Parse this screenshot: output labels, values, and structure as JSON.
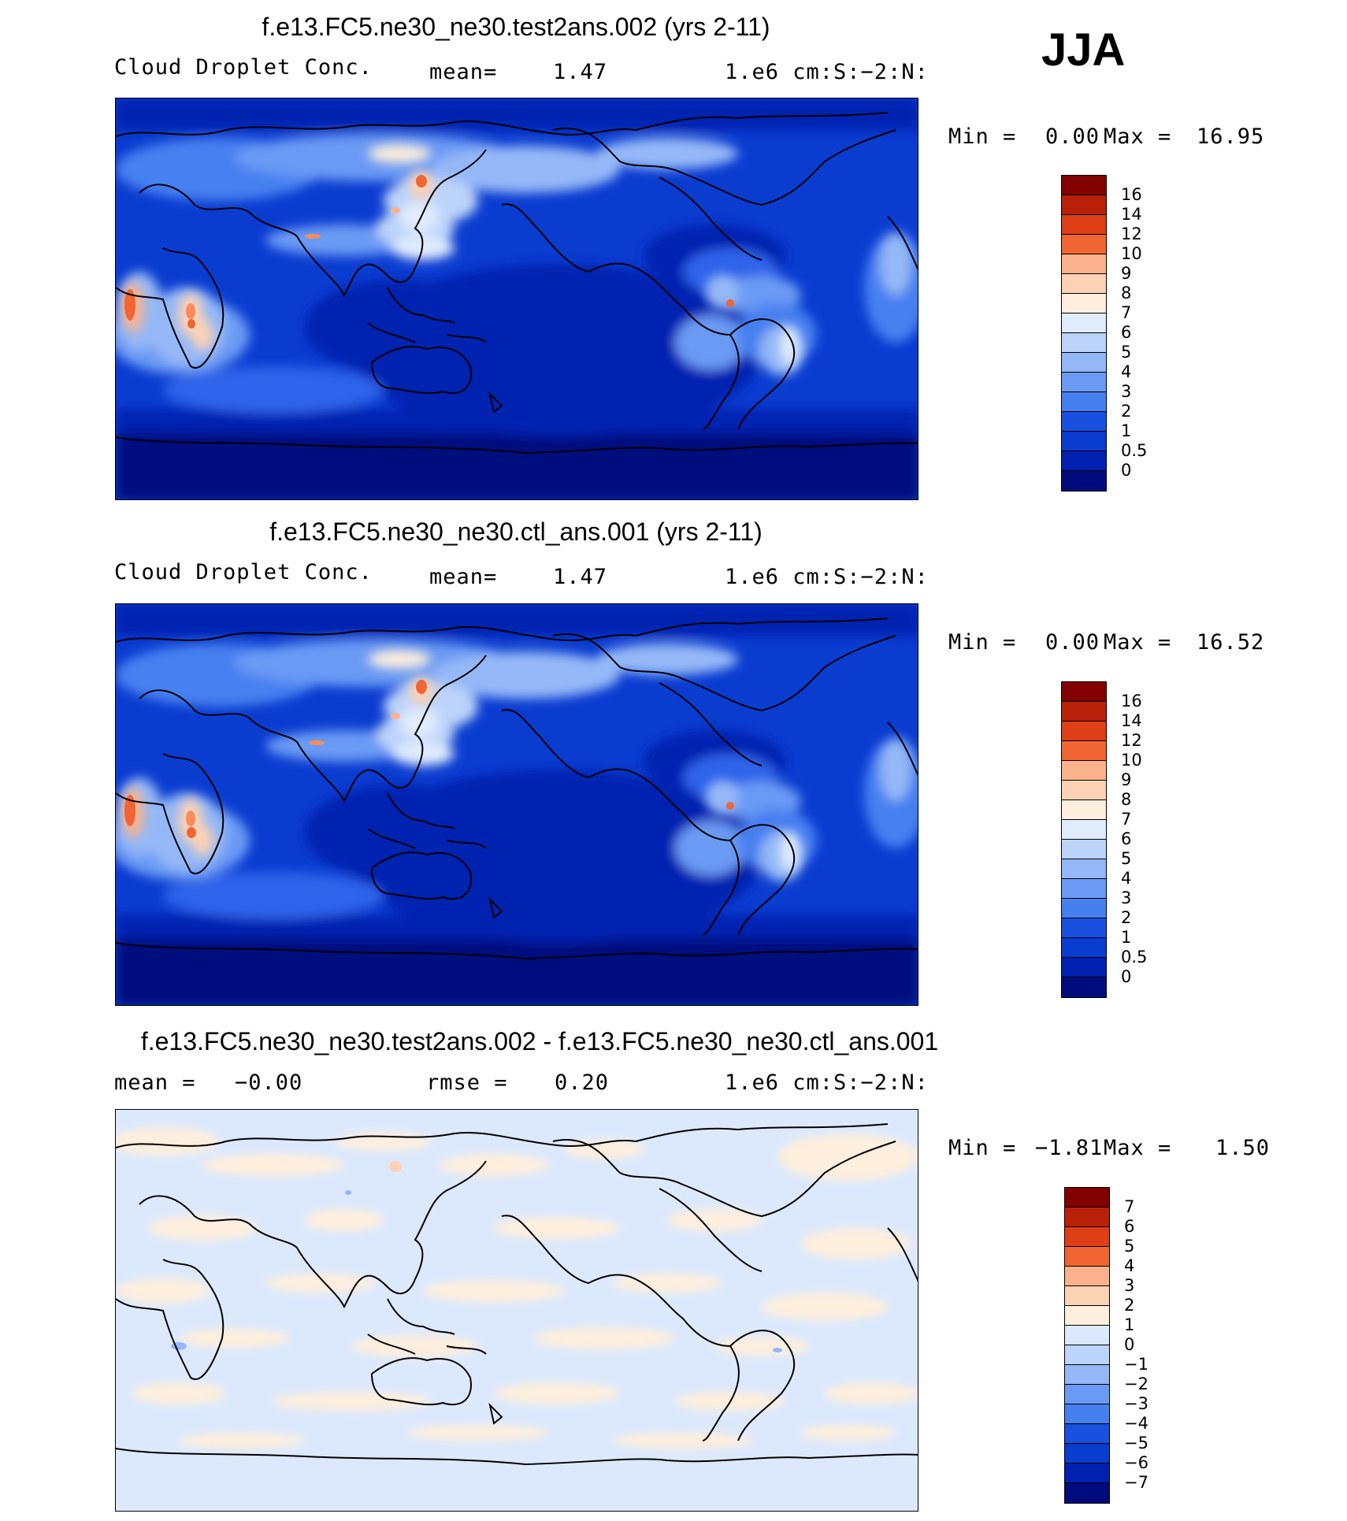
{
  "season": "JJA",
  "colors": {
    "abs": [
      "#000c7d",
      "#0020b0",
      "#0a3cd0",
      "#1a50e0",
      "#2d63ea",
      "#4680f0",
      "#6a9af4",
      "#94b8f7",
      "#bcd3fa",
      "#e0ecfd",
      "#fdeedd",
      "#fcd2b5",
      "#fbb28c",
      "#f98c5a",
      "#f06532",
      "#de3f16",
      "#b8200a",
      "#820000"
    ],
    "diff": [
      "#000c7d",
      "#0020b0",
      "#0a3cd0",
      "#1a50e0",
      "#2d63ea",
      "#4680f0",
      "#6a9af4",
      "#94b8f7",
      "#bcd3fa",
      "#dce9fc",
      "#fdeedd",
      "#fcd2b5",
      "#fbb28c",
      "#f98c5a",
      "#f06532",
      "#de3f16",
      "#b8200a",
      "#820000"
    ]
  },
  "panels": [
    {
      "title": "f.e13.FC5.ne30_ne30.test2ans.002 (yrs 2-11)",
      "field": "Cloud Droplet Conc.",
      "mean_label": "mean=",
      "mean_value": "1.47",
      "units": "1.e6 cm:S:−2:N:",
      "min_label": "Min =",
      "min_value": "0.00",
      "max_label": "Max =",
      "max_value": "16.95",
      "ticks": [
        "16",
        "14",
        "12",
        "10",
        "9",
        "8",
        "7",
        "6",
        "5",
        "4",
        "3",
        "2",
        "1",
        "0.5",
        "0"
      ]
    },
    {
      "title": "f.e13.FC5.ne30_ne30.ctl_ans.001 (yrs 2-11)",
      "field": "Cloud Droplet Conc.",
      "mean_label": "mean=",
      "mean_value": "1.47",
      "units": "1.e6 cm:S:−2:N:",
      "min_label": "Min =",
      "min_value": "0.00",
      "max_label": "Max =",
      "max_value": "16.52",
      "ticks": [
        "16",
        "14",
        "12",
        "10",
        "9",
        "8",
        "7",
        "6",
        "5",
        "4",
        "3",
        "2",
        "1",
        "0.5",
        "0"
      ]
    },
    {
      "title": "f.e13.FC5.ne30_ne30.test2ans.002 - f.e13.FC5.ne30_ne30.ctl_ans.001",
      "mean_label": "mean =",
      "mean_value": "−0.00",
      "rmse_label": "rmse =",
      "rmse_value": "0.20",
      "units": "1.e6 cm:S:−2:N:",
      "min_label": "Min =",
      "min_value": "−1.81",
      "max_label": "Max =",
      "max_value": "1.50",
      "ticks": [
        "7",
        "6",
        "5",
        "4",
        "3",
        "2",
        "1",
        "0",
        "−1",
        "−2",
        "−3",
        "−4",
        "−5",
        "−6",
        "−7"
      ]
    }
  ],
  "chart_data": [
    {
      "type": "heatmap",
      "title": "f.e13.FC5.ne30_ne30.test2ans.002 (yrs 2-11)",
      "variable": "Cloud Droplet Conc.",
      "units": "1.e6 cm:S:−2:N:",
      "mean": 1.47,
      "min": 0.0,
      "max": 16.95,
      "contour_levels": [
        0,
        0.5,
        1,
        2,
        3,
        4,
        5,
        6,
        7,
        8,
        9,
        10,
        12,
        14,
        16
      ],
      "projection": "cylindrical equidistant, Pacific-centred",
      "hotspots": [
        {
          "region": "West Africa coast",
          "value": 14
        },
        {
          "region": "Central Africa",
          "value": 12
        },
        {
          "region": "Northeast China",
          "value": 12
        },
        {
          "region": "South America",
          "value": 8
        }
      ]
    },
    {
      "type": "heatmap",
      "title": "f.e13.FC5.ne30_ne30.ctl_ans.001 (yrs 2-11)",
      "variable": "Cloud Droplet Conc.",
      "units": "1.e6 cm:S:−2:N:",
      "mean": 1.47,
      "min": 0.0,
      "max": 16.52,
      "contour_levels": [
        0,
        0.5,
        1,
        2,
        3,
        4,
        5,
        6,
        7,
        8,
        9,
        10,
        12,
        14,
        16
      ],
      "projection": "cylindrical equidistant, Pacific-centred",
      "hotspots": [
        {
          "region": "West Africa coast",
          "value": 14
        },
        {
          "region": "Central Africa",
          "value": 12
        },
        {
          "region": "Northeast China",
          "value": 12
        },
        {
          "region": "South America",
          "value": 8
        }
      ]
    },
    {
      "type": "heatmap",
      "title": "f.e13.FC5.ne30_ne30.test2ans.002 - f.e13.FC5.ne30_ne30.ctl_ans.001",
      "units": "1.e6 cm:S:−2:N:",
      "mean": -0.0,
      "rmse": 0.2,
      "min": -1.81,
      "max": 1.5,
      "contour_levels": [
        -7,
        -6,
        -5,
        -4,
        -3,
        -2,
        -1,
        0,
        1,
        2,
        3,
        4,
        5,
        6,
        7
      ]
    }
  ]
}
